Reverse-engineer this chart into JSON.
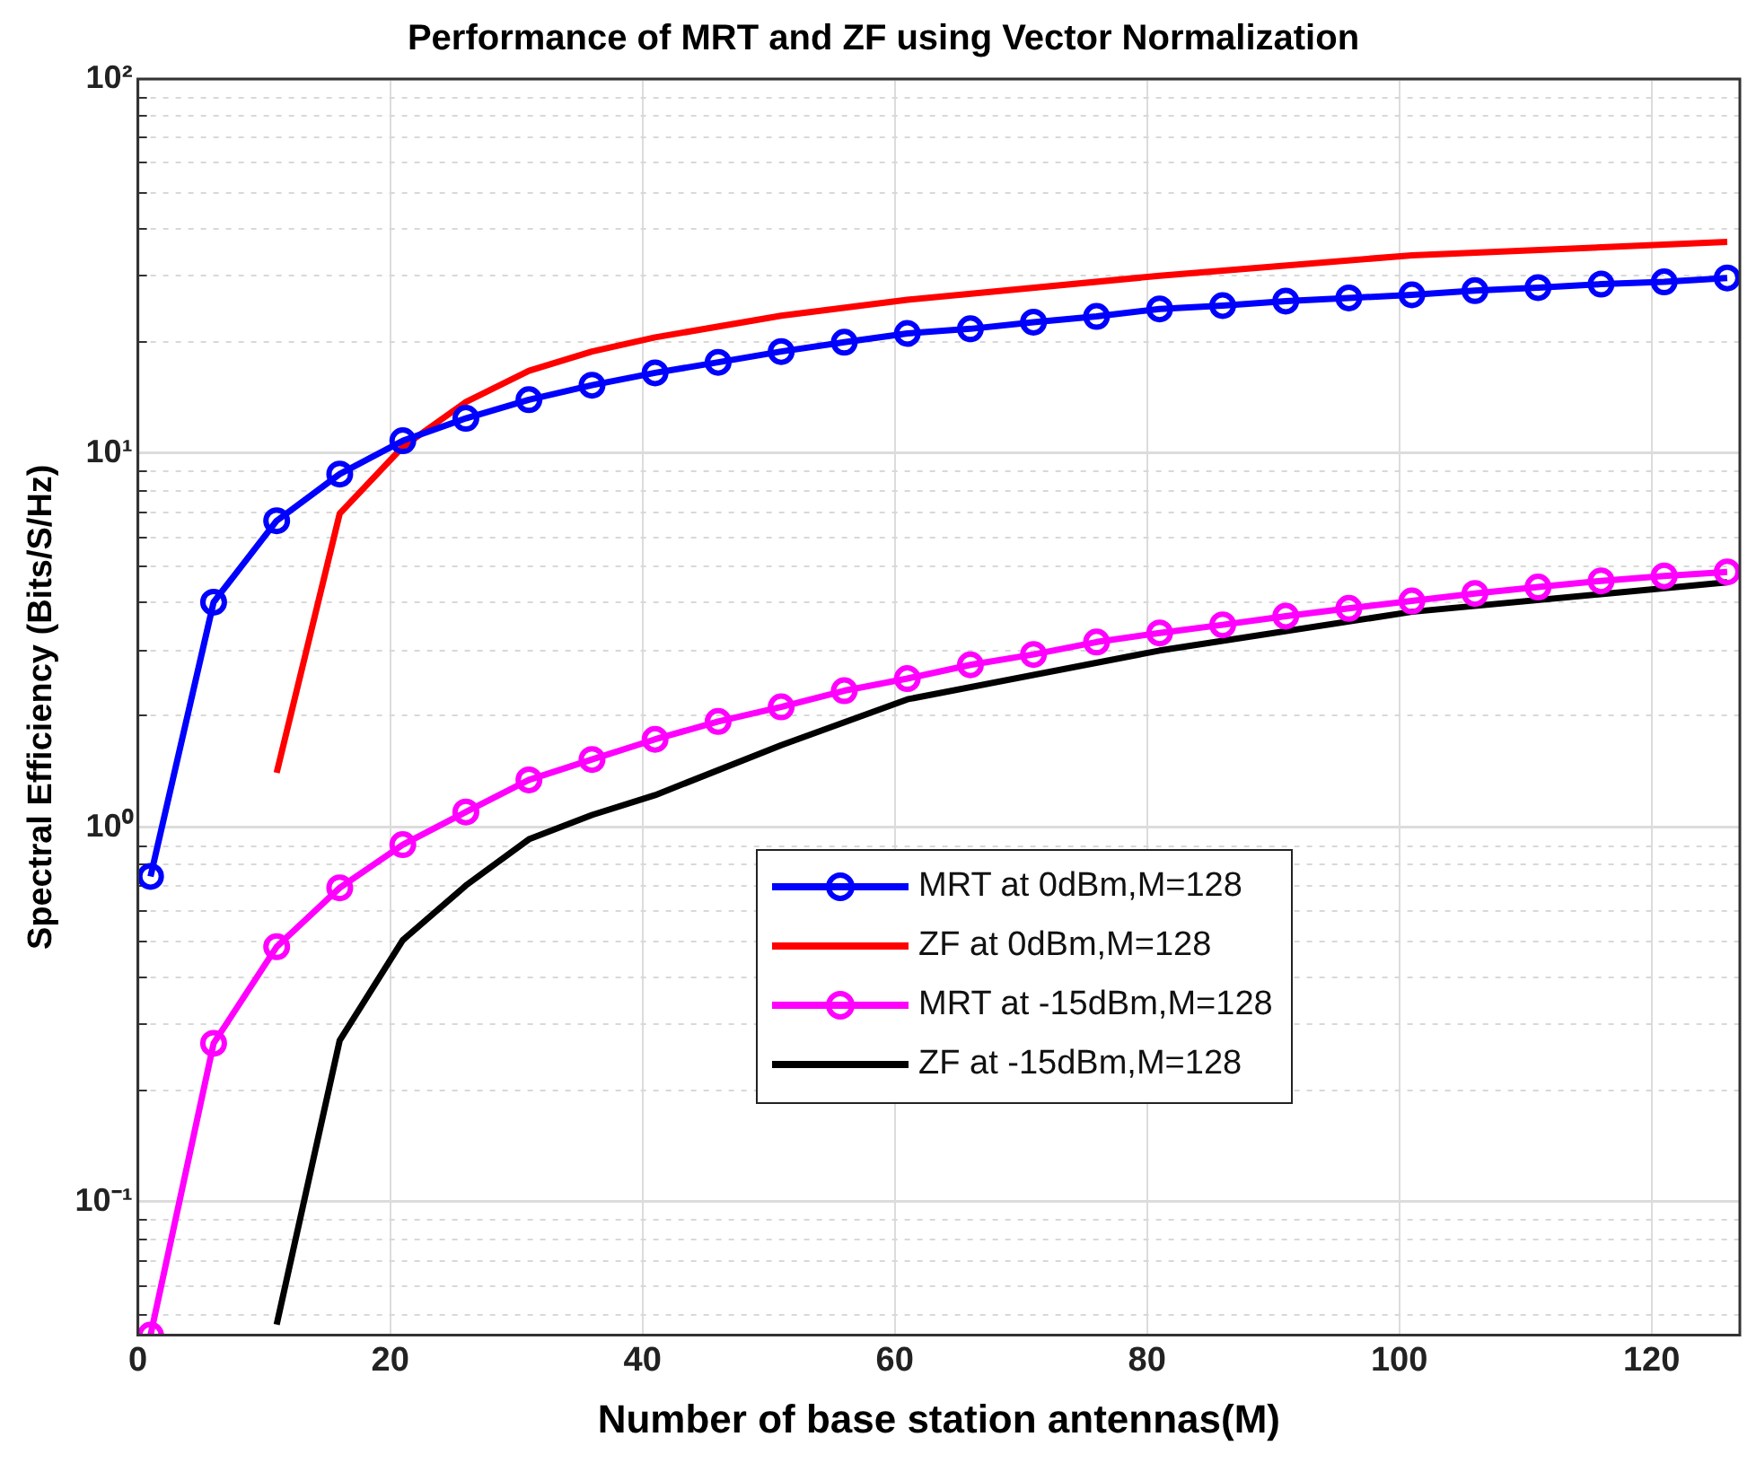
{
  "chart_data": {
    "type": "line",
    "title": "Performance of MRT and ZF using Vector Normalization",
    "xlabel": "Number of base station antennas(M)",
    "ylabel": "Spectral Efficiency (Bits/S/Hz)",
    "log": "y",
    "grid": true,
    "legend": "center",
    "xlim": [
      0,
      127
    ],
    "xticks": [
      0,
      20,
      40,
      60,
      80,
      100,
      120
    ],
    "ylim": [
      0.044,
      100
    ],
    "yticks": [
      {
        "value": 0.1,
        "label": "10⁻¹"
      },
      {
        "value": 1,
        "label": "10⁰"
      },
      {
        "value": 10,
        "label": "10¹"
      },
      {
        "value": 100,
        "label": "10²"
      }
    ],
    "series": [
      {
        "name": "MRT at 0dBm,M=128",
        "color": "#0000ff",
        "marker": "circle",
        "x": [
          1,
          6,
          11,
          16,
          21,
          26,
          31,
          36,
          41,
          46,
          51,
          56,
          61,
          66,
          71,
          76,
          81,
          86,
          91,
          96,
          101,
          106,
          111,
          116,
          121,
          126
        ],
        "values": [
          0.74,
          4.0,
          6.6,
          8.8,
          10.8,
          12.4,
          13.9,
          15.2,
          16.4,
          17.5,
          18.7,
          19.8,
          20.9,
          21.5,
          22.4,
          23.2,
          24.3,
          24.8,
          25.5,
          26.0,
          26.5,
          27.2,
          27.7,
          28.3,
          28.7,
          29.4
        ]
      },
      {
        "name": "ZF at 0dBm,M=128",
        "color": "#ff0000",
        "marker": "none",
        "x": [
          11,
          16,
          21,
          26,
          31,
          36,
          41,
          51,
          61,
          81,
          101,
          126
        ],
        "values": [
          1.4,
          6.9,
          10.4,
          13.7,
          16.6,
          18.7,
          20.4,
          23.3,
          25.7,
          29.8,
          33.8,
          36.7
        ]
      },
      {
        "name": "MRT at -15dBm,M=128",
        "color": "#ff00ff",
        "marker": "circle",
        "x": [
          1,
          6,
          11,
          16,
          21,
          26,
          31,
          36,
          41,
          46,
          51,
          56,
          61,
          66,
          71,
          76,
          81,
          86,
          91,
          96,
          101,
          106,
          111,
          116,
          121,
          126
        ],
        "values": [
          0.044,
          0.265,
          0.48,
          0.69,
          0.9,
          1.1,
          1.34,
          1.52,
          1.72,
          1.92,
          2.1,
          2.32,
          2.5,
          2.72,
          2.9,
          3.13,
          3.31,
          3.48,
          3.67,
          3.85,
          4.03,
          4.22,
          4.39,
          4.56,
          4.7,
          4.82
        ]
      },
      {
        "name": "ZF at -15dBm,M=128",
        "color": "#000000",
        "marker": "none",
        "x": [
          11,
          16,
          21,
          26,
          31,
          36,
          41,
          51,
          61,
          81,
          101,
          126
        ],
        "values": [
          0.047,
          0.27,
          0.5,
          0.7,
          0.93,
          1.08,
          1.22,
          1.66,
          2.2,
          2.97,
          3.77,
          4.52
        ]
      }
    ]
  }
}
